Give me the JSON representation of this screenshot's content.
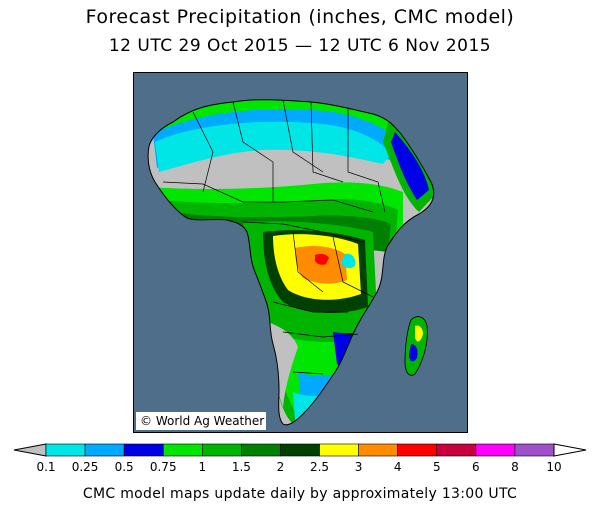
{
  "header": {
    "title": "Forecast Precipitation (inches, CMC model)",
    "period": "12 UTC 29 Oct 2015 — 12 UTC 6 Nov 2015"
  },
  "map": {
    "region": "Africa",
    "colors": {
      "ocean": "#4f6e8a",
      "no_rain": "#c0c0c0",
      "border": "#000000"
    },
    "watermark": "© World Ag Weather"
  },
  "legend": {
    "labels": [
      "0.1",
      "0.25",
      "0.5",
      "0.75",
      "1",
      "1.5",
      "2",
      "2.5",
      "3",
      "4",
      "5",
      "6",
      "8",
      "10"
    ],
    "colors": [
      "#00e6e6",
      "#00aaff",
      "#0000e6",
      "#00e600",
      "#00b400",
      "#008000",
      "#004000",
      "#ffff00",
      "#ff8c00",
      "#ff0000",
      "#c80040",
      "#ff00ff",
      "#a050c8"
    ],
    "low_arrow_color": "#c0c0c0",
    "high_arrow_color": "#ffffff"
  },
  "footer": {
    "note": "CMC model maps update daily by approximately 13:00 UTC"
  }
}
